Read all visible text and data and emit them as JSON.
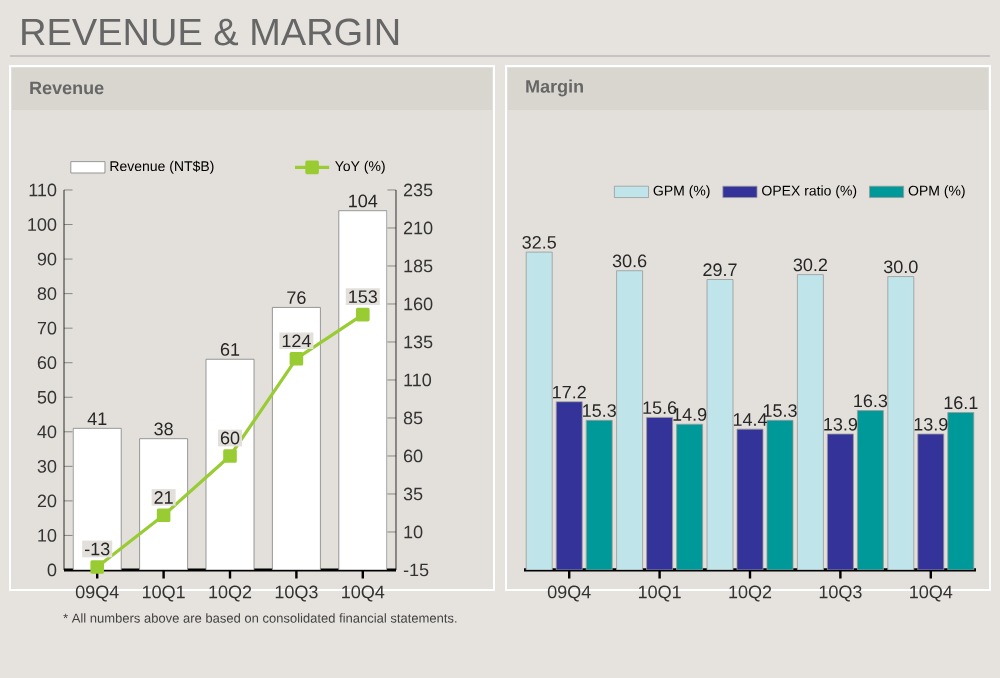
{
  "chart_data": [
    {
      "type": "bar",
      "title": "Revenue",
      "categories": [
        "09Q4",
        "10Q1",
        "10Q2",
        "10Q3",
        "10Q4"
      ],
      "series": [
        {
          "name": "Revenue (NT$B)",
          "color": "#ffffff",
          "values": [
            41,
            38,
            61,
            76,
            104
          ]
        },
        {
          "name": "YoY (%)",
          "type": "line",
          "axis": "y2",
          "color": "#99cc33",
          "values": [
            -13,
            21,
            60,
            124,
            153
          ]
        }
      ],
      "ylim": [
        0,
        110
      ],
      "yticks": [
        0,
        10,
        20,
        30,
        40,
        50,
        60,
        70,
        80,
        90,
        100,
        110
      ],
      "y2lim": [
        -15,
        235
      ],
      "y2ticks": [
        -15,
        10,
        35,
        60,
        85,
        110,
        135,
        160,
        185,
        210,
        235
      ],
      "data_labels": true,
      "legend": "top",
      "marker": "square",
      "annotations": [
        "REVENUE & MARGIN",
        "* All numbers above are based on consolidated financial statements."
      ]
    },
    {
      "type": "bar",
      "title": "Margin",
      "categories": [
        "09Q4",
        "10Q1",
        "10Q2",
        "10Q3",
        "10Q4"
      ],
      "series": [
        {
          "name": "GPM (%)",
          "color": "#bfe4ea",
          "values": [
            32.5,
            30.6,
            29.7,
            30.2,
            30.0
          ],
          "value_labels": [
            "32.5",
            "30.6",
            "29.7",
            "30.2",
            "30.0"
          ]
        },
        {
          "name": "OPEX ratio (%)",
          "color": "#333399",
          "values": [
            17.2,
            15.6,
            14.4,
            13.9,
            13.9
          ]
        },
        {
          "name": "OPM (%)",
          "color": "#009999",
          "values": [
            15.3,
            14.9,
            15.3,
            16.3,
            16.1
          ]
        }
      ],
      "data_labels": true,
      "legend": "top right"
    }
  ]
}
